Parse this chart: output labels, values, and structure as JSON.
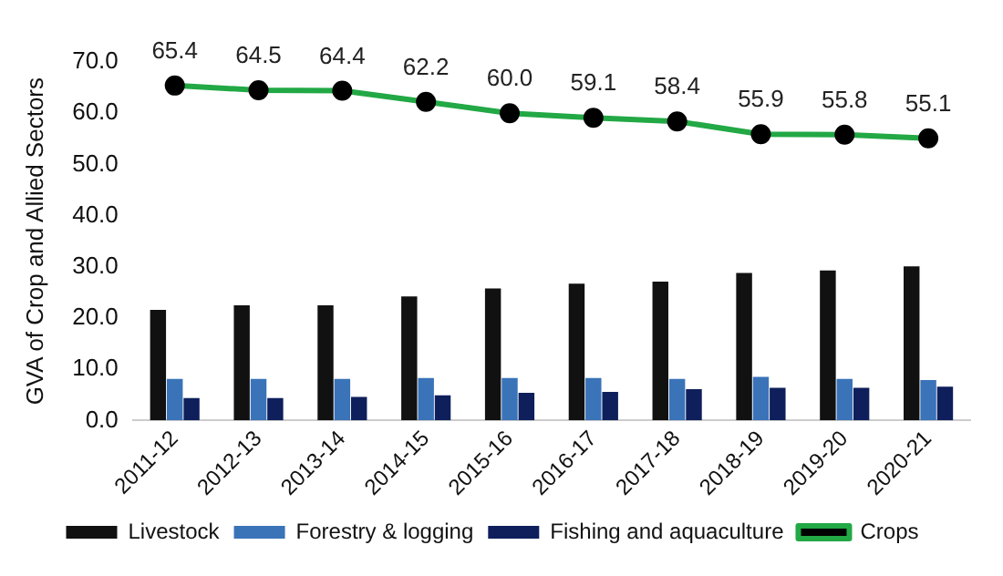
{
  "chart_data": {
    "type": "bar",
    "ylabel": "GVA of Crop and Allied Sectors",
    "categories": [
      "2011-12",
      "2012-13",
      "2013-14",
      "2014-15",
      "2015-16",
      "2016-17",
      "2017-18",
      "2018-19",
      "2019-20",
      "2020-21"
    ],
    "series": [
      {
        "name": "Livestock",
        "color": "#111111",
        "values": [
          21.6,
          22.5,
          22.5,
          24.2,
          25.8,
          26.7,
          27.1,
          28.8,
          29.3,
          30.1
        ]
      },
      {
        "name": "Forestry & logging",
        "color": "#3a73b8",
        "values": [
          8.1,
          8.1,
          8.1,
          8.3,
          8.3,
          8.3,
          8.1,
          8.5,
          8.1,
          7.9
        ]
      },
      {
        "name": "Fishing and aquaculture",
        "color": "#0e1f5b",
        "values": [
          4.4,
          4.4,
          4.6,
          4.9,
          5.4,
          5.6,
          6.1,
          6.4,
          6.4,
          6.6
        ]
      },
      {
        "name": "Crops",
        "type": "line",
        "color": "#22a845",
        "marker": "circle",
        "values": [
          65.4,
          64.5,
          64.4,
          62.2,
          60.0,
          59.1,
          58.4,
          55.9,
          55.8,
          55.1
        ],
        "value_labels": [
          "65.4",
          "64.5",
          "64.4",
          "62.2",
          "60.0",
          "59.1",
          "58.4",
          "55.9",
          "55.8",
          "55.1"
        ]
      }
    ],
    "ylim": [
      0,
      70
    ],
    "yticks": [
      {
        "value": 0,
        "label": "0.0"
      },
      {
        "value": 10,
        "label": "10.0"
      },
      {
        "value": 20,
        "label": "20.0"
      },
      {
        "value": 30,
        "label": "30.0"
      },
      {
        "value": 40,
        "label": "40.0"
      },
      {
        "value": 50,
        "label": "50.0"
      },
      {
        "value": 60,
        "label": "60.0"
      },
      {
        "value": 70,
        "label": "70.0"
      }
    ],
    "legend": "bottom"
  }
}
